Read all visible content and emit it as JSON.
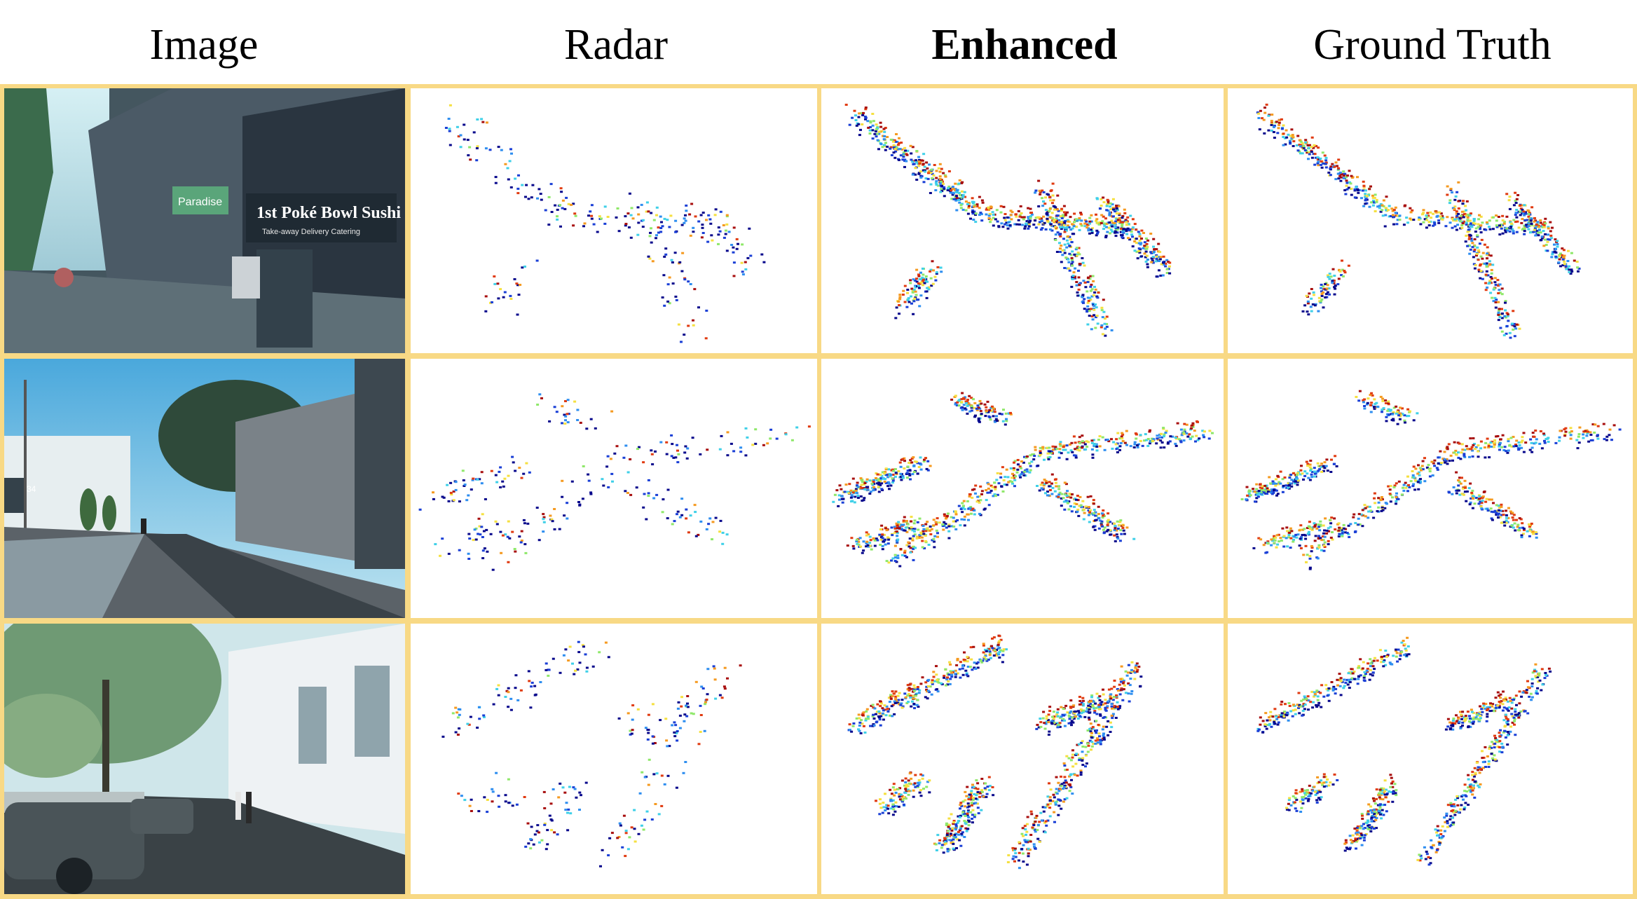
{
  "header": {
    "col_image": "Image",
    "col_radar": "Radar",
    "col_enhanced": "Enhanced",
    "col_ground_truth": "Ground Truth"
  },
  "colors": {
    "border": "#f8d985",
    "colormap": [
      "#08088c",
      "#1a3fd6",
      "#2e8ef0",
      "#3fd0e8",
      "#8fe86a",
      "#f5e040",
      "#f59a20",
      "#e03a10",
      "#a80f0f"
    ]
  },
  "rows": [
    {
      "photo_content": "Street with shops and cyclists",
      "shop_sign": "1st Poké Bowl Sushi",
      "shop_sub": "Take-away Delivery Catering",
      "shop_name2": "Paradise",
      "scene": "street_shops"
    },
    {
      "photo_content": "Road with cyclist and buildings",
      "street_number": "34",
      "scene": "road_campus"
    },
    {
      "photo_content": "Tree-lined street with parked cars",
      "scene": "tree_street"
    }
  ]
}
